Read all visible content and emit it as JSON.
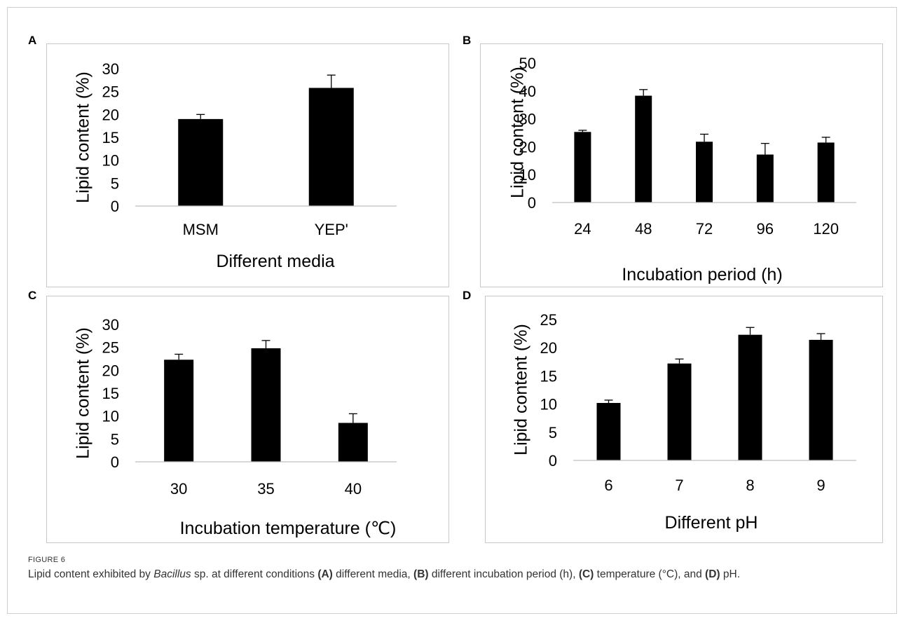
{
  "figure": {
    "label": "FIGURE 6",
    "caption": {
      "p1": "Lipid content exhibited by ",
      "species": "Bacillus",
      "p2": " sp. at different conditions ",
      "refA": "(A)",
      "p3": " different media, ",
      "refB": "(B)",
      "p4": " different incubation period (h), ",
      "refC": "(C)",
      "p5": " temperature (°C), and ",
      "refD": "(D)",
      "p6": " pH."
    }
  },
  "colors": {
    "bar": "#000000",
    "axis": "#bfbfbf",
    "text": "#000000"
  },
  "chart_data": [
    {
      "panel": "A",
      "type": "bar",
      "categories": [
        "MSM",
        "YEP'"
      ],
      "values": [
        19.0,
        25.8
      ],
      "errors": [
        1.0,
        2.8
      ],
      "ylabel": "Lipid content (%)",
      "xlabel": "Different media",
      "ylim": [
        0,
        30
      ],
      "yticks": [
        0,
        5,
        10,
        15,
        20,
        25,
        30
      ],
      "grid": false
    },
    {
      "panel": "B",
      "type": "bar",
      "categories": [
        "24",
        "48",
        "72",
        "96",
        "120"
      ],
      "values": [
        25.3,
        38.3,
        21.8,
        17.2,
        21.5
      ],
      "errors": [
        0.6,
        2.2,
        2.7,
        4.0,
        1.9
      ],
      "ylabel": "Lipid content (%)",
      "xlabel": "Incubation period (h)",
      "ylim": [
        0,
        50
      ],
      "yticks": [
        0,
        10,
        20,
        30,
        40,
        50
      ],
      "grid": false
    },
    {
      "panel": "C",
      "type": "bar",
      "categories": [
        "30",
        "35",
        "40"
      ],
      "values": [
        22.3,
        24.8,
        8.5
      ],
      "errors": [
        1.2,
        1.7,
        2.0
      ],
      "ylabel": "Lipid content (%)",
      "xlabel": "Incubation temperature (℃)",
      "ylim": [
        0,
        30
      ],
      "yticks": [
        0,
        5,
        10,
        15,
        20,
        25,
        30
      ],
      "grid": false
    },
    {
      "panel": "D",
      "type": "bar",
      "categories": [
        "6",
        "7",
        "8",
        "9"
      ],
      "values": [
        10.2,
        17.2,
        22.3,
        21.4
      ],
      "errors": [
        0.5,
        0.8,
        1.3,
        1.1
      ],
      "ylabel": "Lipid content (%)",
      "xlabel": "Different pH",
      "ylim": [
        0,
        25
      ],
      "yticks": [
        0,
        5,
        10,
        15,
        20,
        25
      ],
      "grid": false
    }
  ]
}
